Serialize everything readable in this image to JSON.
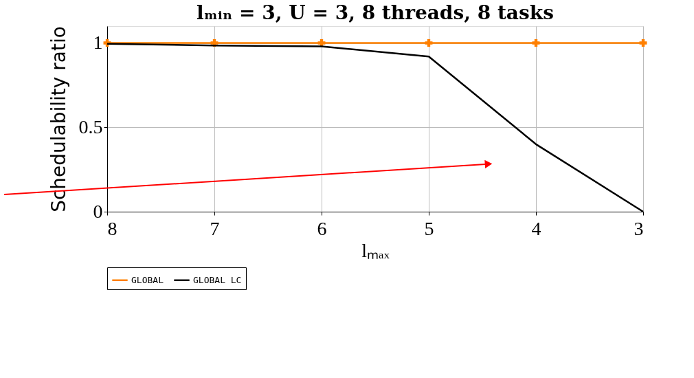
{
  "chart_data": {
    "type": "line",
    "title": "lₘᵢₙ = 3, U = 3, 8 threads, 8 tasks",
    "xlabel": "lₘₐₓ",
    "ylabel": "Schedulability ratio",
    "x": [
      8,
      7,
      6,
      5,
      4,
      3
    ],
    "series": [
      {
        "name": "GLOBAL",
        "color": "#ff8000",
        "marker": "cross",
        "values": [
          1,
          1,
          1,
          1,
          1,
          1
        ]
      },
      {
        "name": "GLOBAL LC",
        "color": "#000000",
        "marker": "none",
        "values": [
          0.995,
          0.985,
          0.98,
          0.92,
          0.4,
          0
        ]
      }
    ],
    "xlim": [
      8,
      3
    ],
    "xticks": [
      8,
      7,
      6,
      5,
      4,
      3
    ],
    "ylim": [
      0,
      1.1
    ],
    "yticks": [
      0,
      0.5,
      1
    ],
    "grid": true,
    "legend": "bottom",
    "line_style": "solid"
  }
}
